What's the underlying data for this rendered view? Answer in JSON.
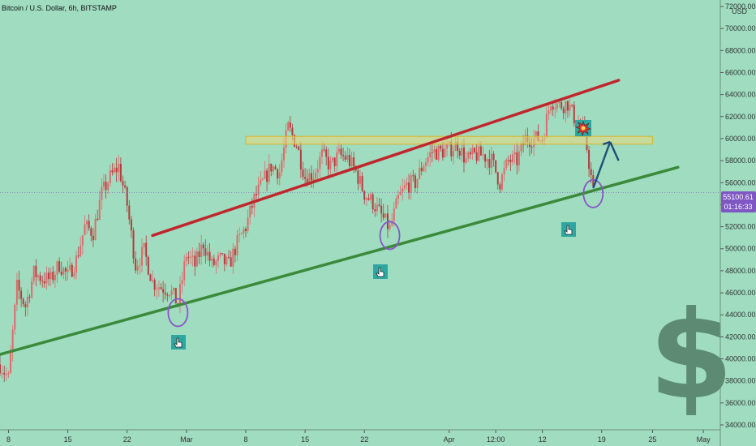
{
  "header": {
    "title": "Bitcoin / U.S. Dollar, 6h, BITSTAMP",
    "currency": "USD"
  },
  "price_tag": {
    "price": "55100.61",
    "countdown": "01:16:33"
  },
  "icons": {
    "pointer": "hand-pointer-icon",
    "explosion": "explosion-icon",
    "dollar": "dollar-sign-icon"
  },
  "colors": {
    "background": "#9fdcc0",
    "up_candle": "#e06a6a",
    "down_candle": "#b33c3c",
    "resistance_line": "#c0262c",
    "support_line": "#3a8a3a",
    "zone_fill": "#e9d97a",
    "target_arrow": "#1f4e79",
    "circle": "#8a56c6",
    "price_tag_bg": "#7e57c2",
    "dollar_sign": "#5c8a72",
    "icon_bg": "#2fa7a0"
  },
  "chart_data": {
    "type": "candlestick",
    "title": "Bitcoin / U.S. Dollar, 6h, BITSTAMP",
    "ylim": [
      34000,
      72000
    ],
    "y_ticks": [
      34000,
      36000,
      38000,
      40000,
      42000,
      44000,
      46000,
      48000,
      50000,
      52000,
      54000,
      56000,
      58000,
      60000,
      62000,
      64000,
      66000,
      68000,
      70000,
      72000
    ],
    "y_tick_labels": [
      "34000.00",
      "36000.00",
      "38000.00",
      "40000.00",
      "42000.00",
      "44000.00",
      "46000.00",
      "48000.00",
      "50000.00",
      "52000.00",
      "54000.00",
      "56000.00",
      "58000.00",
      "60000.00",
      "62000.00",
      "64000.00",
      "66000.00",
      "68000.00",
      "70000.00",
      "72000.00"
    ],
    "x_domain": [
      "2021-02-07",
      "2021-05-03"
    ],
    "x_ticks": [
      {
        "date": "2021-02-08",
        "label": "8"
      },
      {
        "date": "2021-02-15",
        "label": "15"
      },
      {
        "date": "2021-02-22",
        "label": "22"
      },
      {
        "date": "2021-03-01",
        "label": "Mar"
      },
      {
        "date": "2021-03-08",
        "label": "8"
      },
      {
        "date": "2021-03-15",
        "label": "15"
      },
      {
        "date": "2021-03-22",
        "label": "22"
      },
      {
        "date": "2021-04-01",
        "label": "Apr"
      },
      {
        "date": "2021-04-06 12:00",
        "label": "12:00"
      },
      {
        "date": "2021-04-12",
        "label": "12"
      },
      {
        "date": "2021-04-19",
        "label": "19"
      },
      {
        "date": "2021-04-25",
        "label": "25"
      },
      {
        "date": "2021-05-01",
        "label": "May"
      }
    ],
    "price_path": [
      [
        "2021-02-07",
        39500
      ],
      [
        "2021-02-08",
        38200
      ],
      [
        "2021-02-09",
        46500
      ],
      [
        "2021-02-10",
        44800
      ],
      [
        "2021-02-11",
        47800
      ],
      [
        "2021-02-12",
        47300
      ],
      [
        "2021-02-13",
        47200
      ],
      [
        "2021-02-14",
        48600
      ],
      [
        "2021-02-15",
        47500
      ],
      [
        "2021-02-16",
        49000
      ],
      [
        "2021-02-17",
        52000
      ],
      [
        "2021-02-18",
        51500
      ],
      [
        "2021-02-19",
        55000
      ],
      [
        "2021-02-20",
        56500
      ],
      [
        "2021-02-21",
        57500
      ],
      [
        "2021-02-22",
        54000
      ],
      [
        "2021-02-23",
        48500
      ],
      [
        "2021-02-24",
        49800
      ],
      [
        "2021-02-25",
        47000
      ],
      [
        "2021-02-26",
        46500
      ],
      [
        "2021-02-27",
        46300
      ],
      [
        "2021-02-28",
        45000
      ],
      [
        "2021-03-01",
        49500
      ],
      [
        "2021-03-02",
        48500
      ],
      [
        "2021-03-03",
        50500
      ],
      [
        "2021-03-04",
        48500
      ],
      [
        "2021-03-05",
        49000
      ],
      [
        "2021-03-06",
        48500
      ],
      [
        "2021-03-07",
        50500
      ],
      [
        "2021-03-08",
        52000
      ],
      [
        "2021-03-09",
        54500
      ],
      [
        "2021-03-10",
        56000
      ],
      [
        "2021-03-11",
        57500
      ],
      [
        "2021-03-12",
        57000
      ],
      [
        "2021-03-13",
        61000
      ],
      [
        "2021-03-14",
        59500
      ],
      [
        "2021-03-15",
        56500
      ],
      [
        "2021-03-16",
        56800
      ],
      [
        "2021-03-17",
        58500
      ],
      [
        "2021-03-18",
        57500
      ],
      [
        "2021-03-19",
        58500
      ],
      [
        "2021-03-20",
        58200
      ],
      [
        "2021-03-21",
        57000
      ],
      [
        "2021-03-22",
        55000
      ],
      [
        "2021-03-23",
        54200
      ],
      [
        "2021-03-24",
        53000
      ],
      [
        "2021-03-25",
        51800
      ],
      [
        "2021-03-26",
        54500
      ],
      [
        "2021-03-27",
        55800
      ],
      [
        "2021-03-28",
        56000
      ],
      [
        "2021-03-29",
        57800
      ],
      [
        "2021-03-30",
        58800
      ],
      [
        "2021-03-31",
        58800
      ],
      [
        "2021-04-01",
        59000
      ],
      [
        "2021-04-02",
        59500
      ],
      [
        "2021-04-03",
        58000
      ],
      [
        "2021-04-04",
        58500
      ],
      [
        "2021-04-05",
        58500
      ],
      [
        "2021-04-06",
        58000
      ],
      [
        "2021-04-07",
        56000
      ],
      [
        "2021-04-08",
        58000
      ],
      [
        "2021-04-09",
        58000
      ],
      [
        "2021-04-10",
        60000
      ],
      [
        "2021-04-11",
        60000
      ],
      [
        "2021-04-12",
        60000
      ],
      [
        "2021-04-13",
        63500
      ],
      [
        "2021-04-14",
        63000
      ],
      [
        "2021-04-15",
        63200
      ],
      [
        "2021-04-16",
        61500
      ],
      [
        "2021-04-17",
        60500
      ],
      [
        "2021-04-18",
        55100
      ]
    ],
    "annotations": {
      "resistance_line": {
        "from": [
          "2021-02-25",
          51200
        ],
        "to": [
          "2021-04-21",
          65300
        ],
        "label": ""
      },
      "support_line": {
        "from": [
          "2021-02-07",
          40400
        ],
        "to": [
          "2021-04-28",
          57400
        ],
        "label": ""
      },
      "horizontal_zone": {
        "from": "2021-03-08",
        "to": "2021-04-25",
        "y_low": 59500,
        "y_high": 60200
      },
      "current_price_line": 55100.61,
      "target_arrow": {
        "from": [
          "2021-04-18",
          55500
        ],
        "to": [
          "2021-04-20",
          59700
        ]
      },
      "down_arrow": {
        "from": [
          "2021-04-20",
          59700
        ],
        "to": [
          "2021-04-21",
          58000
        ]
      },
      "circled_lows": [
        [
          "2021-02-28",
          44200
        ],
        [
          "2021-03-25",
          51200
        ],
        [
          "2021-04-18",
          55000
        ]
      ]
    }
  }
}
